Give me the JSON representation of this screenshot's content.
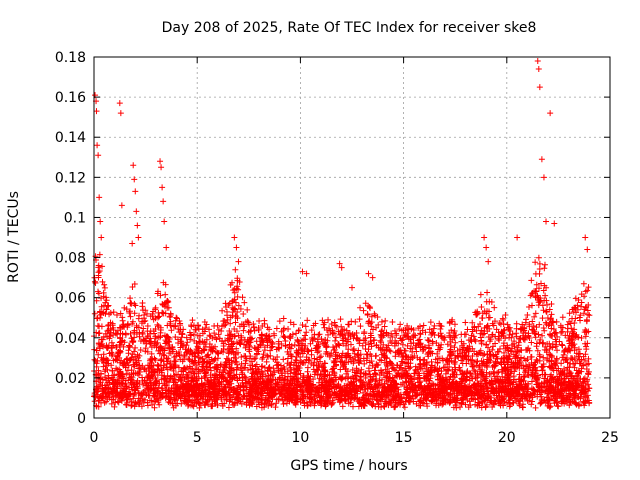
{
  "chart_data": {
    "type": "scatter",
    "title": "Day 208 of 2025, Rate Of TEC Index for receiver ske8",
    "xlabel": "GPS time / hours",
    "ylabel": "ROTI / TECUs",
    "xlim": [
      0,
      25
    ],
    "ylim": [
      0,
      0.18
    ],
    "xticks": [
      0,
      5,
      10,
      15,
      20,
      25
    ],
    "xtick_labels": [
      "0",
      "5",
      "10",
      "15",
      "20",
      "25"
    ],
    "yticks": [
      0,
      0.02,
      0.04,
      0.06,
      0.08,
      0.1,
      0.12,
      0.14,
      0.16,
      0.18
    ],
    "ytick_labels": [
      "0",
      "0.02",
      "0.04",
      "0.06",
      "0.08",
      "0.1",
      "0.12",
      "0.14",
      "0.16",
      "0.18"
    ],
    "grid": true,
    "marker": "plus",
    "color": "#ff0000",
    "series": [
      {
        "name": "ROTI",
        "note": "dense point cloud: baseline ~0.01-0.04 TECU/min across 0-24 h; notable peaks listed",
        "x": [
          0.05,
          0.1,
          0.12,
          0.15,
          0.2,
          0.25,
          0.3,
          0.35,
          1.25,
          1.3,
          1.35,
          1.9,
          1.95,
          2.0,
          2.05,
          2.1,
          1.85,
          2.15,
          3.2,
          3.25,
          3.3,
          3.35,
          3.4,
          3.5,
          6.8,
          6.9,
          7.0,
          10.1,
          10.3,
          11.9,
          12.0,
          12.5,
          13.3,
          13.5,
          18.9,
          19.0,
          19.1,
          20.5,
          21.5,
          21.55,
          21.6,
          21.7,
          21.8,
          21.9,
          22.1,
          22.3,
          23.8,
          23.9
        ],
        "y": [
          0.161,
          0.158,
          0.153,
          0.136,
          0.131,
          0.11,
          0.098,
          0.09,
          0.157,
          0.152,
          0.106,
          0.126,
          0.119,
          0.113,
          0.103,
          0.096,
          0.087,
          0.09,
          0.128,
          0.125,
          0.115,
          0.108,
          0.098,
          0.085,
          0.09,
          0.085,
          0.078,
          0.073,
          0.072,
          0.077,
          0.075,
          0.065,
          0.072,
          0.07,
          0.09,
          0.085,
          0.078,
          0.09,
          0.178,
          0.174,
          0.165,
          0.129,
          0.12,
          0.098,
          0.152,
          0.097,
          0.09,
          0.084
        ]
      }
    ]
  }
}
